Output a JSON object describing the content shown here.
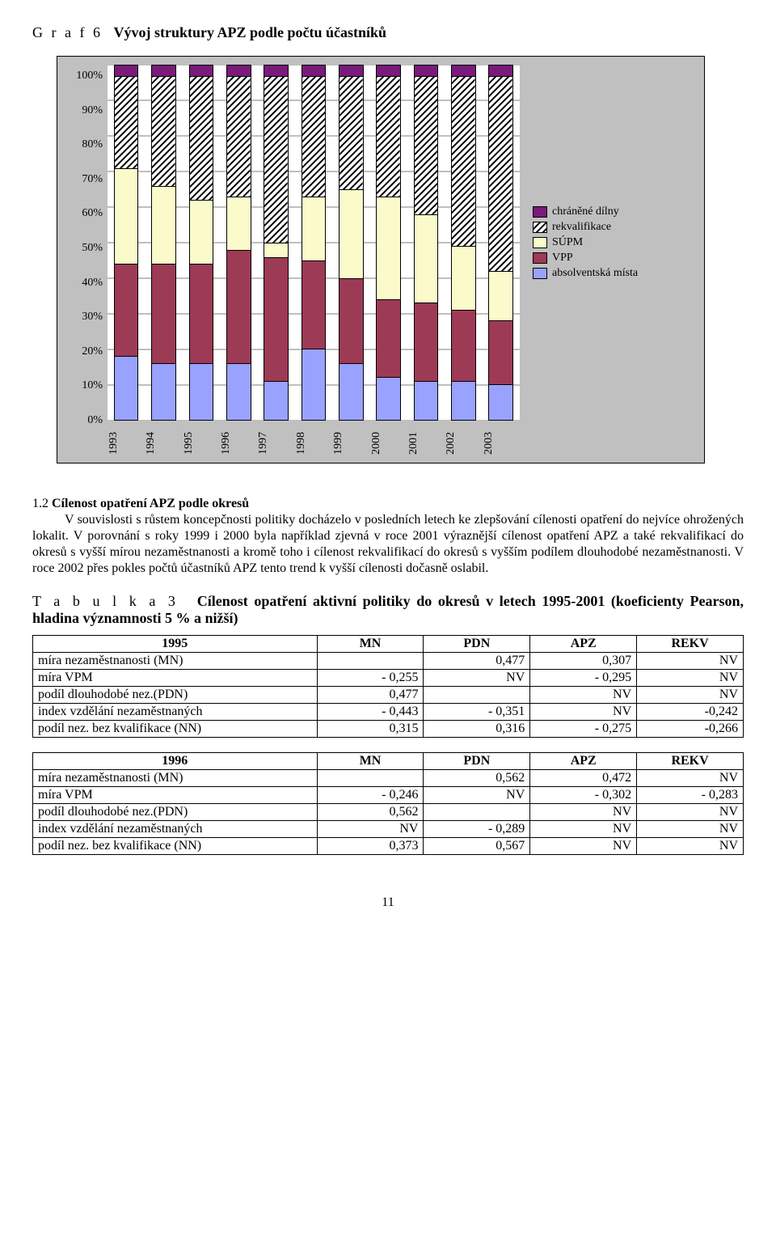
{
  "graf": {
    "label": "G r a f  6",
    "title": "Vývoj struktury APZ podle počtu účastníků",
    "y_ticks": [
      "0%",
      "10%",
      "20%",
      "30%",
      "40%",
      "50%",
      "60%",
      "70%",
      "80%",
      "90%",
      "100%"
    ],
    "x_labels": [
      "1993",
      "1994",
      "1995",
      "1996",
      "1997",
      "1998",
      "1999",
      "2000",
      "2001",
      "2002",
      "2003"
    ],
    "series": [
      {
        "key": "absolventska",
        "label": "absolventská místa",
        "color": "#9aa2ff",
        "type": "solid"
      },
      {
        "key": "vpp",
        "label": "VPP",
        "color": "#9d3a55",
        "type": "solid"
      },
      {
        "key": "supm",
        "label": "SÚPM",
        "color": "#fafacb",
        "type": "solid"
      },
      {
        "key": "rekvalifikace",
        "label": "rekvalifikace",
        "color": "hatch",
        "type": "hatch"
      },
      {
        "key": "chranene",
        "label": "chráněné dílny",
        "color": "#7a1a7a",
        "type": "solid"
      }
    ],
    "legend_order": [
      "chranene",
      "rekvalifikace",
      "supm",
      "vpp",
      "absolventska"
    ],
    "data": [
      {
        "absolventska": 18,
        "vpp": 26,
        "supm": 27,
        "rekvalifikace": 26,
        "chranene": 3
      },
      {
        "absolventska": 16,
        "vpp": 28,
        "supm": 22,
        "rekvalifikace": 31,
        "chranene": 3
      },
      {
        "absolventska": 16,
        "vpp": 28,
        "supm": 18,
        "rekvalifikace": 35,
        "chranene": 3
      },
      {
        "absolventska": 16,
        "vpp": 32,
        "supm": 15,
        "rekvalifikace": 34,
        "chranene": 3
      },
      {
        "absolventska": 11,
        "vpp": 35,
        "supm": 4,
        "rekvalifikace": 47,
        "chranene": 3
      },
      {
        "absolventska": 20,
        "vpp": 25,
        "supm": 18,
        "rekvalifikace": 34,
        "chranene": 3
      },
      {
        "absolventska": 16,
        "vpp": 24,
        "supm": 25,
        "rekvalifikace": 32,
        "chranene": 3
      },
      {
        "absolventska": 12,
        "vpp": 22,
        "supm": 29,
        "rekvalifikace": 34,
        "chranene": 3
      },
      {
        "absolventska": 11,
        "vpp": 22,
        "supm": 25,
        "rekvalifikace": 39,
        "chranene": 3
      },
      {
        "absolventska": 11,
        "vpp": 20,
        "supm": 18,
        "rekvalifikace": 48,
        "chranene": 3
      },
      {
        "absolventska": 10,
        "vpp": 18,
        "supm": 14,
        "rekvalifikace": 55,
        "chranene": 3
      }
    ],
    "plot_bg": "#ffffff",
    "panel_bg": "#c0c0c0",
    "border_color": "#000000"
  },
  "section": {
    "num": "1.2",
    "title": "Cílenost opatření APZ podle okresů",
    "body": "V souvislosti s růstem koncepčnosti politiky docházelo v posledních letech ke zlepšování cílenosti opatření do nejvíce ohrožených lokalit. V porovnání s roky 1999 i 2000 byla například zjevná v roce 2001 výraznější cílenost opatření APZ a také rekvalifikací do okresů s vyšší mírou nezaměstnanosti a kromě toho i cílenost rekvalifikací do okresů s vyšším podílem dlouhodobé nezaměstnanosti. V roce 2002 přes pokles počtů účastníků APZ tento trend k vyšší cílenosti dočasně oslabil."
  },
  "tabulka": {
    "label": "T a b u l k a   3",
    "title": "Cílenost opatření aktivní politiky do okresů  v letech 1995-2001 (koeficienty Pearson, hladina významnosti 5 % a nižší)",
    "columns": [
      "",
      "MN",
      "PDN",
      "APZ",
      "REKV"
    ],
    "blocks": [
      {
        "year": "1995",
        "rows": [
          {
            "lbl": "míra nezaměstnanosti (MN)",
            "c": [
              "",
              "0,477",
              "0,307",
              "NV"
            ]
          },
          {
            "lbl": "míra VPM",
            "c": [
              "- 0,255",
              "NV",
              "- 0,295",
              "NV"
            ]
          },
          {
            "lbl": "podíl dlouhodobé nez.(PDN)",
            "c": [
              "0,477",
              "",
              "NV",
              "NV"
            ]
          },
          {
            "lbl": "index vzdělání nezaměstnaných",
            "c": [
              "- 0,443",
              "- 0,351",
              "NV",
              "-0,242"
            ]
          },
          {
            "lbl": "podíl nez. bez kvalifikace (NN)",
            "c": [
              "0,315",
              "0,316",
              "- 0,275",
              "-0,266"
            ]
          }
        ]
      },
      {
        "year": "1996",
        "rows": [
          {
            "lbl": "míra nezaměstnanosti (MN)",
            "c": [
              "",
              "0,562",
              "0,472",
              "NV"
            ]
          },
          {
            "lbl": "míra VPM",
            "c": [
              "- 0,246",
              "NV",
              "- 0,302",
              "- 0,283"
            ]
          },
          {
            "lbl": "podíl dlouhodobé nez.(PDN)",
            "c": [
              "0,562",
              "",
              "NV",
              "NV"
            ]
          },
          {
            "lbl": "index vzdělání nezaměstnaných",
            "c": [
              "NV",
              "- 0,289",
              "NV",
              "NV"
            ]
          },
          {
            "lbl": "podíl nez. bez kvalifikace (NN)",
            "c": [
              "0,373",
              "0,567",
              "NV",
              "NV"
            ]
          }
        ]
      }
    ]
  },
  "page_number": "11"
}
